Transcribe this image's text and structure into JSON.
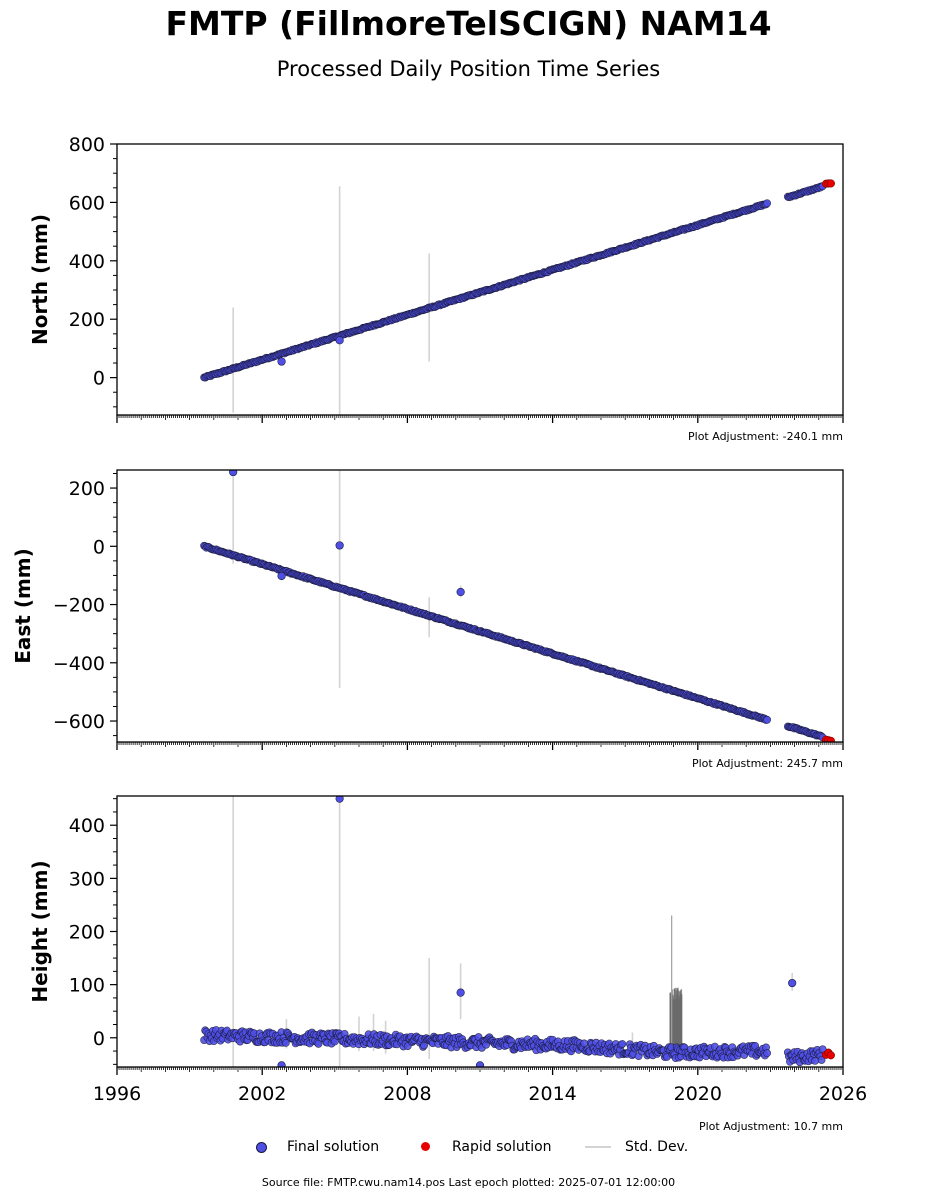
{
  "title": "FMTP (FillmoreTelSCIGN) NAM14",
  "subtitle": "Processed Daily Position Time Series",
  "legend": {
    "final": "Final solution",
    "rapid": "Rapid solution",
    "std": "Std. Dev."
  },
  "footer": "Source file: FMTP.cwu.nam14.pos  Last epoch plotted: 2025-07-01 12:00:00",
  "colors": {
    "final": "#4f4fe6",
    "final_edge": "#1a1a3a",
    "rapid": "#e60000",
    "std": "#d3d3d3",
    "std_dark": "#6a6a6a"
  },
  "chart_data": [
    {
      "type": "scatter",
      "ylabel": "North (mm)",
      "adjustment": "Plot Adjustment: -240.1 mm",
      "xlim": [
        1996,
        2026
      ],
      "ylim": [
        -128,
        800
      ],
      "yticks": [
        0,
        200,
        400,
        600,
        800
      ],
      "x_tick_labels_shown": false,
      "trend": {
        "x0": 1999.6,
        "y0": 0,
        "slope": 25.6
      },
      "gap": [
        2022.9,
        2023.7
      ],
      "outliers": [
        {
          "x": 2002.8,
          "y": 55
        },
        {
          "x": 2005.2,
          "y": 128
        }
      ],
      "error_bars": [
        {
          "x": 2000.8,
          "lo": -120,
          "hi": 240
        },
        {
          "x": 2005.2,
          "lo": -128,
          "hi": 655
        },
        {
          "x": 2008.9,
          "lo": 55,
          "hi": 425
        }
      ],
      "rapid_points": [
        {
          "x": 2025.3,
          "y": 664
        },
        {
          "x": 2025.4,
          "y": 665
        },
        {
          "x": 2025.5,
          "y": 665
        }
      ]
    },
    {
      "type": "scatter",
      "ylabel": "East (mm)",
      "adjustment": "Plot Adjustment: 245.7 mm",
      "xlim": [
        1996,
        2026
      ],
      "ylim": [
        -672,
        262
      ],
      "yticks": [
        -600,
        -400,
        -200,
        0,
        200
      ],
      "x_tick_labels_shown": false,
      "trend": {
        "x0": 1999.6,
        "y0": 0,
        "slope": -25.6
      },
      "gap": [
        2022.9,
        2023.7
      ],
      "outliers": [
        {
          "x": 2000.8,
          "y": 255
        },
        {
          "x": 2002.8,
          "y": -102
        },
        {
          "x": 2005.2,
          "y": 3
        },
        {
          "x": 2010.2,
          "y": -157
        }
      ],
      "error_bars": [
        {
          "x": 2000.8,
          "lo": -60,
          "hi": 262
        },
        {
          "x": 2005.2,
          "lo": -487,
          "hi": 262
        },
        {
          "x": 2008.9,
          "lo": -312,
          "hi": -175
        },
        {
          "x": 2010.2,
          "lo": -175,
          "hi": -135
        }
      ],
      "rapid_points": [
        {
          "x": 2025.3,
          "y": -664
        },
        {
          "x": 2025.4,
          "y": -666
        },
        {
          "x": 2025.5,
          "y": -668
        }
      ]
    },
    {
      "type": "scatter",
      "ylabel": "Height (mm)",
      "adjustment": "Plot Adjustment: 10.7 mm",
      "xlim": [
        1996,
        2026
      ],
      "ylim": [
        -55,
        455
      ],
      "yticks": [
        0,
        100,
        200,
        300,
        400
      ],
      "xticks": [
        1996,
        2002,
        2008,
        2014,
        2020,
        2026
      ],
      "x_tick_labels_shown": true,
      "series_level": [
        {
          "x": 1999.6,
          "y": 5
        },
        {
          "x": 2005.0,
          "y": -2
        },
        {
          "x": 2010.0,
          "y": -8
        },
        {
          "x": 2015.0,
          "y": -15
        },
        {
          "x": 2018.8,
          "y": -28
        },
        {
          "x": 2022.9,
          "y": -25
        },
        {
          "x": 2023.7,
          "y": -38
        },
        {
          "x": 2025.5,
          "y": -30
        }
      ],
      "gap": [
        2022.9,
        2023.7
      ],
      "outliers": [
        {
          "x": 2005.2,
          "y": 450
        },
        {
          "x": 2010.2,
          "y": 85
        },
        {
          "x": 2023.9,
          "y": 103
        },
        {
          "x": 2002.8,
          "y": -52
        },
        {
          "x": 2011.0,
          "y": -52
        }
      ],
      "error_bars": [
        {
          "x": 2000.8,
          "lo": -55,
          "hi": 455
        },
        {
          "x": 2005.2,
          "lo": -55,
          "hi": 455
        },
        {
          "x": 2008.9,
          "lo": -40,
          "hi": 150
        },
        {
          "x": 2010.2,
          "lo": 35,
          "hi": 140
        },
        {
          "x": 2023.9,
          "lo": 88,
          "hi": 122
        },
        {
          "x": 2006.0,
          "lo": -25,
          "hi": 40
        },
        {
          "x": 2006.6,
          "lo": -25,
          "hi": 45
        },
        {
          "x": 2007.1,
          "lo": -30,
          "hi": 32
        },
        {
          "x": 2003.0,
          "lo": -20,
          "hi": 35
        },
        {
          "x": 2017.3,
          "lo": -40,
          "hi": 10
        }
      ],
      "dark_error_bars": {
        "x_start": 2018.85,
        "x_end": 2019.35,
        "lo": -40,
        "hi": 95,
        "peak": {
          "x": 2018.92,
          "hi": 230
        }
      },
      "rapid_points": [
        {
          "x": 2025.3,
          "y": -32
        },
        {
          "x": 2025.4,
          "y": -28
        },
        {
          "x": 2025.5,
          "y": -33
        }
      ]
    }
  ]
}
